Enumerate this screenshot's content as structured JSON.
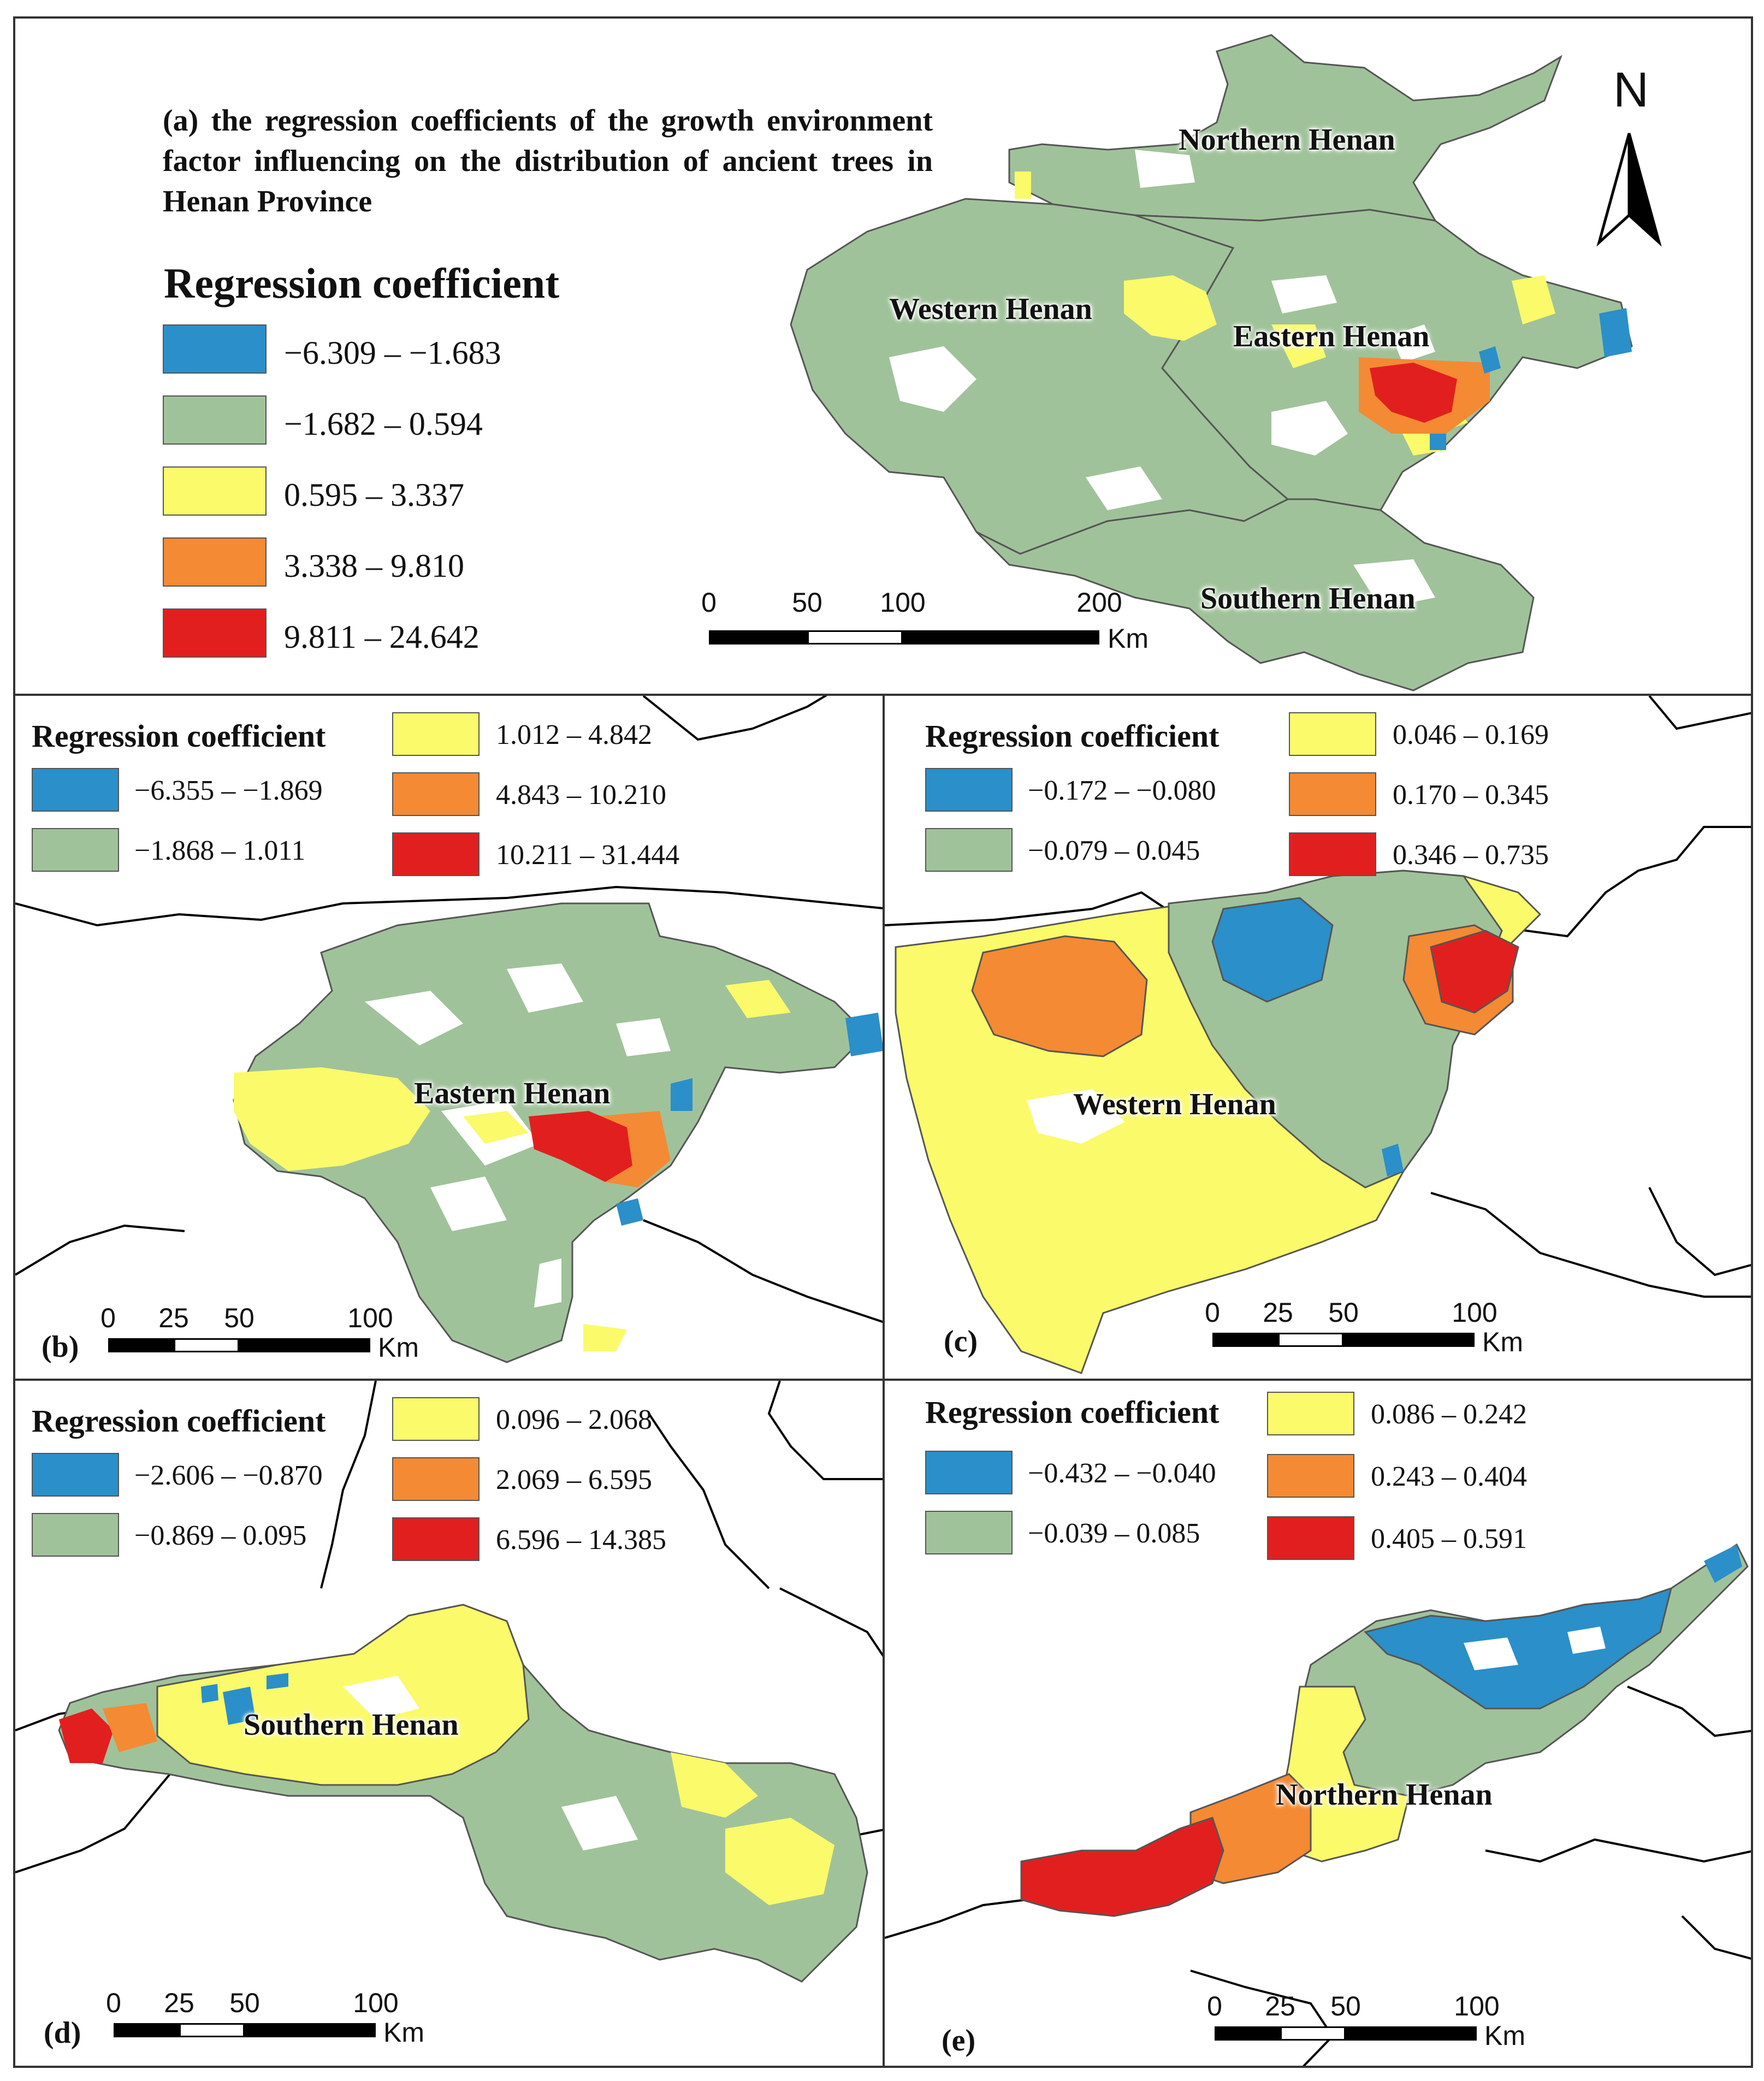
{
  "colors": {
    "blue": "#2b8fc9",
    "green": "#a0c29a",
    "yellow": "#fafa6a",
    "orange": "#f48a33",
    "red": "#e21f1f",
    "boundary": "#444444"
  },
  "panel_a": {
    "title": "(a) the regression coefficients of the growth environment factor influencing on the distribution of ancient trees in Henan Province",
    "legend_title": "Regression coefficient",
    "legend": [
      {
        "color": "blue",
        "label": "−6.309 – −1.683"
      },
      {
        "color": "green",
        "label": "−1.682 – 0.594"
      },
      {
        "color": "yellow",
        "label": "0.595 – 3.337"
      },
      {
        "color": "orange",
        "label": "3.338 – 9.810"
      },
      {
        "color": "red",
        "label": "9.811 – 24.642"
      }
    ],
    "regions": {
      "northern": "Northern Henan",
      "western": "Western Henan",
      "eastern": "Eastern Henan",
      "southern": "Southern Henan"
    },
    "north_arrow": "N",
    "scalebar": {
      "ticks": [
        "0",
        "50",
        "100",
        "200"
      ],
      "unit": "Km"
    }
  },
  "panel_b": {
    "label": "(b)",
    "legend_title": "Regression coefficient",
    "legend": [
      {
        "color": "blue",
        "label": "−6.355 – −1.869"
      },
      {
        "color": "green",
        "label": "−1.868 – 1.011"
      },
      {
        "color": "yellow",
        "label": "1.012 – 4.842"
      },
      {
        "color": "orange",
        "label": "4.843 – 10.210"
      },
      {
        "color": "red",
        "label": "10.211 – 31.444"
      }
    ],
    "region": "Eastern Henan",
    "scalebar": {
      "ticks": [
        "0",
        "25",
        "50",
        "100"
      ],
      "unit": "Km"
    }
  },
  "panel_c": {
    "label": "(c)",
    "legend_title": "Regression coefficient",
    "legend": [
      {
        "color": "blue",
        "label": "−0.172 – −0.080"
      },
      {
        "color": "green",
        "label": "−0.079 – 0.045"
      },
      {
        "color": "yellow",
        "label": "0.046 – 0.169"
      },
      {
        "color": "orange",
        "label": "0.170 – 0.345"
      },
      {
        "color": "red",
        "label": "0.346 – 0.735"
      }
    ],
    "region": "Western Henan",
    "scalebar": {
      "ticks": [
        "0",
        "25",
        "50",
        "100"
      ],
      "unit": "Km"
    }
  },
  "panel_d": {
    "label": "(d)",
    "legend_title": "Regression coefficient",
    "legend": [
      {
        "color": "blue",
        "label": "−2.606 – −0.870"
      },
      {
        "color": "green",
        "label": "−0.869 – 0.095"
      },
      {
        "color": "yellow",
        "label": "0.096 – 2.068"
      },
      {
        "color": "orange",
        "label": "2.069 – 6.595"
      },
      {
        "color": "red",
        "label": "6.596 – 14.385"
      }
    ],
    "region": "Southern Henan",
    "scalebar": {
      "ticks": [
        "0",
        "25",
        "50",
        "100"
      ],
      "unit": "Km"
    }
  },
  "panel_e": {
    "label": "(e)",
    "legend_title": "Regression coefficient",
    "legend": [
      {
        "color": "blue",
        "label": "−0.432 – −0.040"
      },
      {
        "color": "green",
        "label": "−0.039 – 0.085"
      },
      {
        "color": "yellow",
        "label": "0.086 – 0.242"
      },
      {
        "color": "orange",
        "label": "0.243 – 0.404"
      },
      {
        "color": "red",
        "label": "0.405 – 0.591"
      }
    ],
    "region": "Northern Henan",
    "scalebar": {
      "ticks": [
        "0",
        "25",
        "50",
        "100"
      ],
      "unit": "Km"
    }
  }
}
